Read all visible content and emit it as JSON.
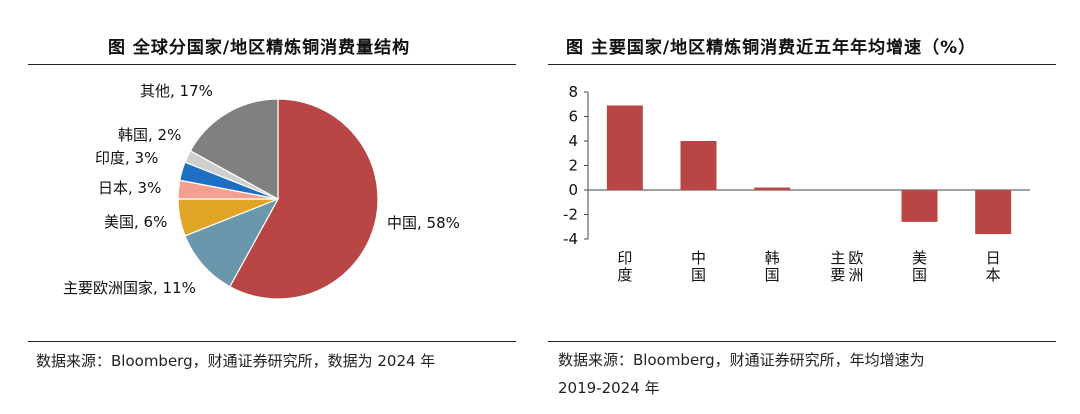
{
  "left_panel": {
    "title": "图 全球分国家/地区精炼铜消费量结构",
    "source": "数据来源：Bloomberg，财通证券研究所，数据为 2024 年"
  },
  "right_panel": {
    "title": "图 主要国家/地区精炼铜消费近五年年均增速（%）",
    "source_line1": "数据来源：Bloomberg，财通证券研究所，年均增速为",
    "source_line2": "2019-2024 年"
  },
  "chart_data": [
    {
      "type": "pie",
      "title": "图 全球分国家/地区精炼铜消费量结构",
      "unit": "%",
      "slices": [
        {
          "label": "中国, 58%",
          "name": "中国",
          "value": 58,
          "color": "#b94545"
        },
        {
          "label": "主要欧洲国家, 11%",
          "name": "主要欧洲国家",
          "value": 11,
          "color": "#6a97ab"
        },
        {
          "label": "美国, 6%",
          "name": "美国",
          "value": 6,
          "color": "#e0a526"
        },
        {
          "label": "日本, 3%",
          "name": "日本",
          "value": 3,
          "color": "#f4a090"
        },
        {
          "label": "印度, 3%",
          "name": "印度",
          "value": 3,
          "color": "#1e6fc4"
        },
        {
          "label": "韩国, 2%",
          "name": "韩国",
          "value": 2,
          "color": "#cfcfcf"
        },
        {
          "label": "其他, 17%",
          "name": "其他",
          "value": 17,
          "color": "#808080"
        }
      ]
    },
    {
      "type": "bar",
      "title": "图 主要国家/地区精炼铜消费近五年年均增速（%）",
      "categories": [
        "印度",
        "中国",
        "韩国",
        "主要欧洲",
        "美国",
        "日本"
      ],
      "values": [
        6.9,
        4.0,
        0.2,
        0.0,
        -2.6,
        -3.6
      ],
      "ylim": [
        -4,
        8
      ],
      "yticks": [
        "-4",
        "-2",
        "0",
        "2",
        "4",
        "6",
        "8"
      ],
      "bar_color": "#b94545",
      "grid": false
    }
  ]
}
